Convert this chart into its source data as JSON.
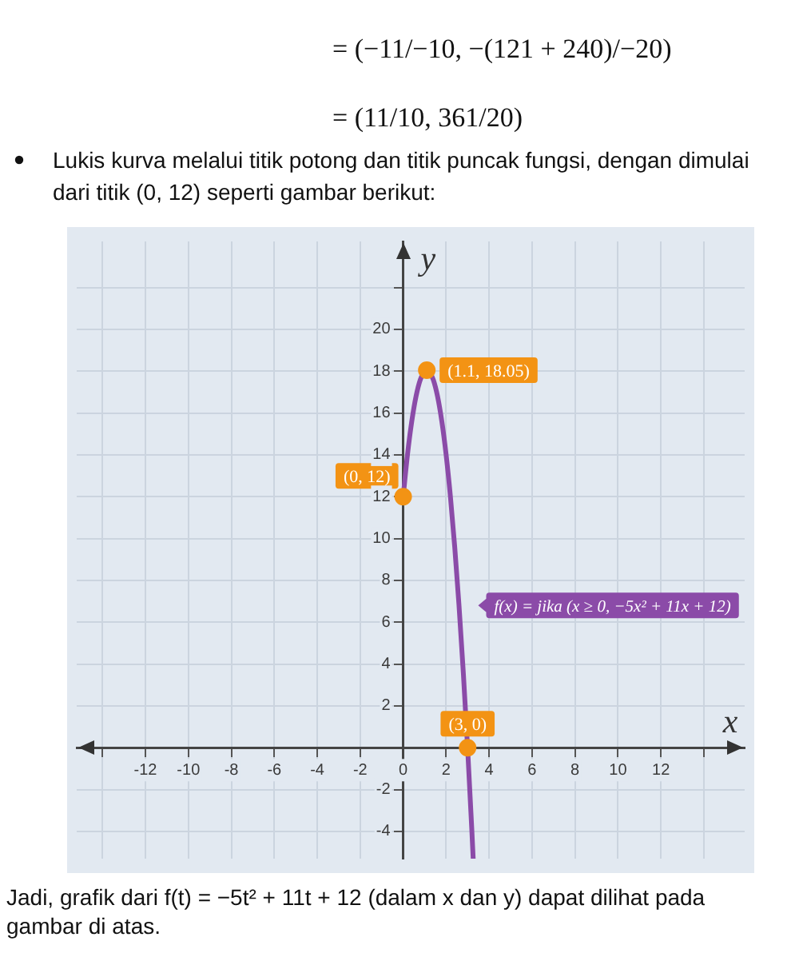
{
  "chart_data": {
    "type": "line",
    "title": "Lukis kurva melalui titik potong dan titik puncak fungsi, dengan dimulai dari titik (0, 12) seperti gambar berikut:",
    "annotations": [
      "= (−11/−10, −(121 + 240)/−20)",
      "= (11/10, 361/20)",
      "Jadi, grafik dari f(t) = −5t² + 11t + 12 (dalam x dan y) dapat dilihat pada gambar di atas."
    ],
    "xlabel": "x",
    "ylabel": "y",
    "xlim": [
      -15.2,
      15.9
    ],
    "ylim": [
      -5.3,
      24.2
    ],
    "xticks": [
      {
        "value": -14,
        "label": null
      },
      -12,
      -10,
      -8,
      -6,
      -4,
      -2,
      0,
      2,
      4,
      6,
      8,
      10,
      12,
      {
        "value": 14,
        "label": null
      }
    ],
    "yticks": [
      -4,
      -2,
      2,
      4,
      6,
      8,
      10,
      12,
      14,
      16,
      18,
      20,
      {
        "value": 22,
        "label": null
      }
    ],
    "grid": true,
    "series": [
      {
        "type": "line",
        "name": "f(x) = jika (x ≥ 0, −5x² + 11x + 12)",
        "color": "#8b4ba8",
        "marker": "none",
        "line_style": "solid",
        "x": [
          0,
          0.2,
          0.4,
          0.6,
          0.8,
          1,
          1.1,
          1.2,
          1.4,
          1.6,
          1.8,
          2,
          2.2,
          2.4,
          2.6,
          2.8,
          3,
          3.2,
          3.26
        ],
        "values": [
          12,
          14,
          15.6,
          16.8,
          17.6,
          18,
          18.05,
          18,
          17.6,
          16.8,
          15.6,
          14,
          12,
          9.6,
          6.8,
          3.6,
          0,
          -4,
          -5.3
        ]
      },
      {
        "type": "scatter",
        "color": "#f39314",
        "marker": "circle",
        "x": [
          0,
          1.1,
          3
        ],
        "values": [
          12,
          18.05,
          0
        ],
        "value_labels": [
          "(0, 12)",
          "(1.1, 18.05)",
          "(3, 0)"
        ]
      }
    ]
  }
}
